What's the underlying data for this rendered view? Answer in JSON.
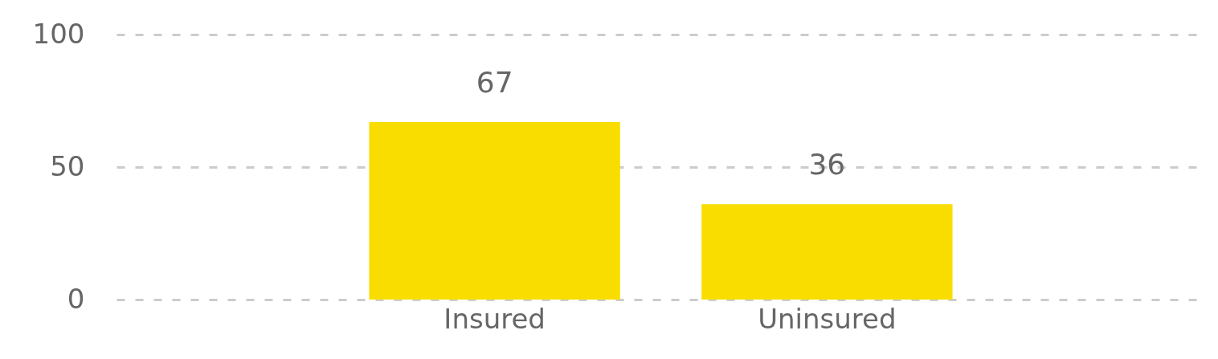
{
  "chart_data": {
    "type": "bar",
    "categories": [
      "Insured",
      "Uninsured"
    ],
    "values": [
      67,
      36
    ],
    "color": "#fadd00",
    "ylim": [
      0,
      100
    ],
    "yticks": [
      0,
      50,
      100
    ],
    "grid": "y",
    "data_labels": true
  }
}
